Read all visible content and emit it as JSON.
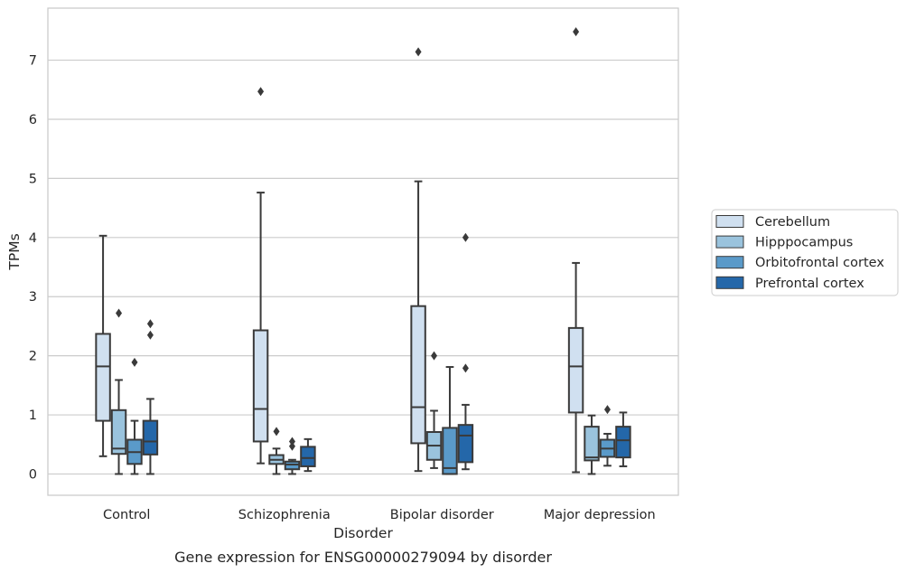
{
  "chart_data": {
    "type": "box",
    "title": "Gene expression for ENSG00000279094 by disorder",
    "xlabel": "Disorder",
    "ylabel": "TPMs",
    "ylim": [
      -0.36,
      7.88
    ],
    "yticks": [
      0,
      1,
      2,
      3,
      4,
      5,
      6,
      7
    ],
    "categories": [
      "Control",
      "Schizophrenia",
      "Bipolar disorder",
      "Major depression"
    ],
    "grid": "horizontal",
    "legend_position": "right",
    "series": [
      {
        "name": "Cerebellum",
        "color": "#d0e0f0",
        "boxes": [
          {
            "whislo": 0.3,
            "q1": 0.9,
            "med": 1.82,
            "q3": 2.37,
            "whishi": 4.03,
            "fliers": []
          },
          {
            "whislo": 0.18,
            "q1": 0.55,
            "med": 1.1,
            "q3": 2.43,
            "whishi": 4.76,
            "fliers": [
              6.47
            ]
          },
          {
            "whislo": 0.05,
            "q1": 0.52,
            "med": 1.13,
            "q3": 2.84,
            "whishi": 4.95,
            "fliers": [
              7.14
            ]
          },
          {
            "whislo": 0.03,
            "q1": 1.04,
            "med": 1.82,
            "q3": 2.47,
            "whishi": 3.57,
            "fliers": [
              7.48
            ]
          }
        ]
      },
      {
        "name": "Hipppocampus",
        "color": "#9ac3dd",
        "boxes": [
          {
            "whislo": 0.0,
            "q1": 0.34,
            "med": 0.43,
            "q3": 1.08,
            "whishi": 1.59,
            "fliers": [
              2.72
            ]
          },
          {
            "whislo": 0.0,
            "q1": 0.17,
            "med": 0.24,
            "q3": 0.32,
            "whishi": 0.43,
            "fliers": [
              0.72
            ]
          },
          {
            "whislo": 0.1,
            "q1": 0.24,
            "med": 0.48,
            "q3": 0.71,
            "whishi": 1.07,
            "fliers": [
              2.0
            ]
          },
          {
            "whislo": 0.0,
            "q1": 0.23,
            "med": 0.28,
            "q3": 0.8,
            "whishi": 0.99,
            "fliers": []
          }
        ]
      },
      {
        "name": "Orbitofrontal cortex",
        "color": "#5a9ac9",
        "boxes": [
          {
            "whislo": 0.0,
            "q1": 0.17,
            "med": 0.37,
            "q3": 0.58,
            "whishi": 0.9,
            "fliers": [
              1.89
            ]
          },
          {
            "whislo": 0.0,
            "q1": 0.08,
            "med": 0.16,
            "q3": 0.21,
            "whishi": 0.24,
            "fliers": [
              0.47,
              0.55
            ]
          },
          {
            "whislo": 0.0,
            "q1": 0.0,
            "med": 0.1,
            "q3": 0.78,
            "whishi": 1.81,
            "fliers": []
          },
          {
            "whislo": 0.14,
            "q1": 0.29,
            "med": 0.43,
            "q3": 0.58,
            "whishi": 0.68,
            "fliers": [
              1.09
            ]
          }
        ]
      },
      {
        "name": "Prefrontal cortex",
        "color": "#2467a9",
        "boxes": [
          {
            "whislo": 0.0,
            "q1": 0.33,
            "med": 0.55,
            "q3": 0.9,
            "whishi": 1.27,
            "fliers": [
              2.35,
              2.54
            ]
          },
          {
            "whislo": 0.05,
            "q1": 0.13,
            "med": 0.27,
            "q3": 0.46,
            "whishi": 0.59,
            "fliers": []
          },
          {
            "whislo": 0.08,
            "q1": 0.2,
            "med": 0.65,
            "q3": 0.83,
            "whishi": 1.17,
            "fliers": [
              1.79,
              4.0
            ]
          },
          {
            "whislo": 0.13,
            "q1": 0.28,
            "med": 0.57,
            "q3": 0.8,
            "whishi": 1.04,
            "fliers": []
          }
        ]
      }
    ]
  }
}
